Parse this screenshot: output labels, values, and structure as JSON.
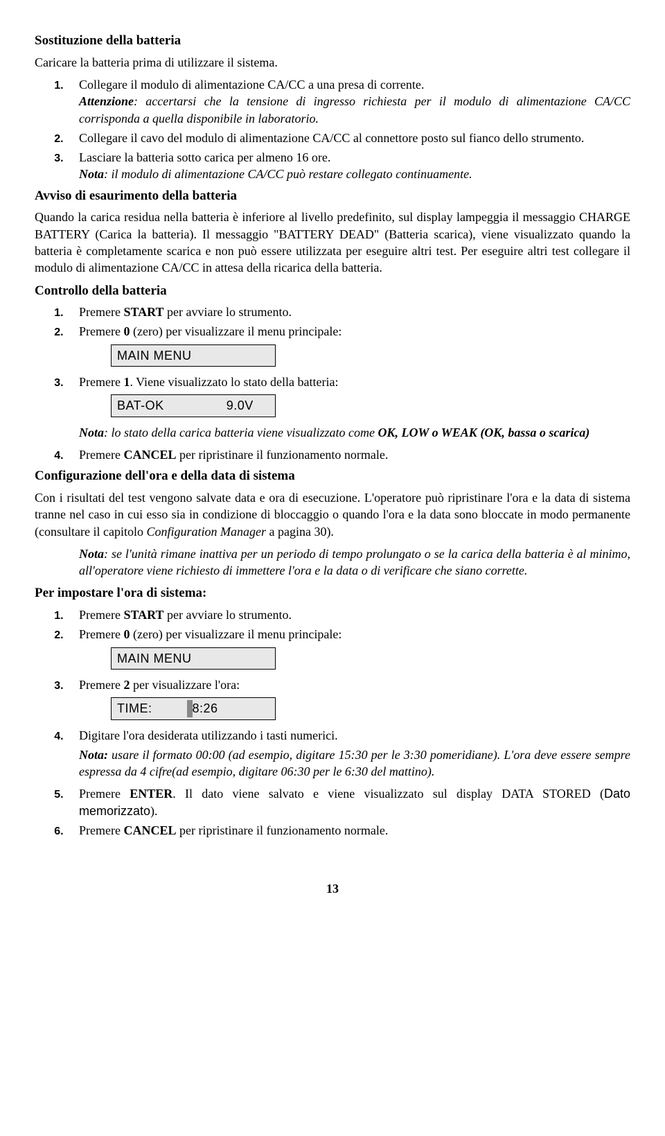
{
  "s1": {
    "title": "Sostituzione della batteria",
    "intro": "Caricare la batteria prima di utilizzare il sistema.",
    "li1": "Collegare il modulo di alimentazione CA/CC a una presa di corrente.",
    "li1_note_label": "Attenzione",
    "li1_note_rest": ": accertarsi che la tensione di ingresso richiesta per il modulo di alimentazione CA/CC corrisponda a quella disponibile in laboratorio.",
    "li2": "Collegare il cavo del modulo di alimentazione CA/CC al connettore posto sul fianco dello strumento.",
    "li3": "Lasciare la batteria sotto carica per almeno 16 ore.",
    "li3_note_label": "Nota",
    "li3_note_rest": ": il modulo di alimentazione CA/CC può restare collegato continuamente."
  },
  "s2": {
    "title": "Avviso di esaurimento della batteria",
    "body": "Quando la carica residua nella batteria è inferiore al livello predefinito, sul display lampeggia il messaggio CHARGE BATTERY (Carica la batteria). Il messaggio \"BATTERY DEAD\" (Batteria scarica), viene visualizzato quando la batteria è completamente scarica e non può essere utilizzata per eseguire altri test. Per eseguire altri test collegare il modulo di alimentazione CA/CC  in attesa della ricarica della batteria."
  },
  "s3": {
    "title": "Controllo della batteria",
    "li1a": "Premere ",
    "li1b": "START",
    "li1c": " per avviare lo strumento.",
    "li2a": "Premere ",
    "li2b": "0",
    "li2c": " (zero) per visualizzare il menu principale:",
    "disp1": "MAIN MENU",
    "li3a": "Premere ",
    "li3b": "1",
    "li3c": ". Viene visualizzato lo stato della batteria:",
    "disp2_label": "BAT-OK",
    "disp2_val": "9.0V",
    "note_label": "Nota",
    "note_rest": ": lo stato della carica batteria viene visualizzato come ",
    "note_bold": "OK, LOW o WEAK (OK, bassa o scarica)",
    "li4a": "Premere ",
    "li4b": "CANCEL",
    "li4c": " per ripristinare il funzionamento normale."
  },
  "s4": {
    "title": "Configurazione dell'ora e della data di sistema",
    "body_a": "Con i risultati del test vengono salvate data e ora di esecuzione. L'operatore può ripristinare l'ora e la data di sistema tranne nel caso in cui esso sia in condizione di bloccaggio o quando l'ora e la data sono bloccate in modo permanente (consultare il capitolo ",
    "body_b": "Configuration Manager",
    "body_c": " a pagina 30).",
    "note_label": "Nota",
    "note_rest": ": se l'unità rimane inattiva per un periodo di tempo prolungato o se la carica della batteria è al minimo, all'operatore viene richiesto di immettere l'ora e la data o di verificare che siano corrette."
  },
  "s5": {
    "title": "Per impostare l'ora di sistema:",
    "li1a": "Premere ",
    "li1b": "START",
    "li1c": " per avviare lo strumento.",
    "li2a": "Premere ",
    "li2b": "0",
    "li2c": " (zero) per visualizzare il menu principale:",
    "disp1": "MAIN MENU",
    "li3a": "Premere ",
    "li3b": "2",
    "li3c": " per visualizzare l'ora:",
    "disp2_label": "TIME:",
    "disp2_val": "8:26",
    "li4": "Digitare l'ora desiderata utilizzando i tasti numerici.",
    "note_label": "Nota:",
    "note_rest": " usare il formato 00:00 (ad esempio, digitare 15:30 per le 3:30 pomeridiane). L'ora deve essere sempre espressa da 4 cifre(ad esempio, digitare 06:30 per le 6:30 del mattino).",
    "li5a": "Premere ",
    "li5b": "ENTER",
    "li5c": ". Il dato viene salvato e viene visualizzato sul display DATA STORED (",
    "li5d": "Dato memorizzato",
    "li5e": ").",
    "li6a": "Premere ",
    "li6b": "CANCEL",
    "li6c": " per ripristinare il funzionamento normale."
  },
  "page": "13"
}
